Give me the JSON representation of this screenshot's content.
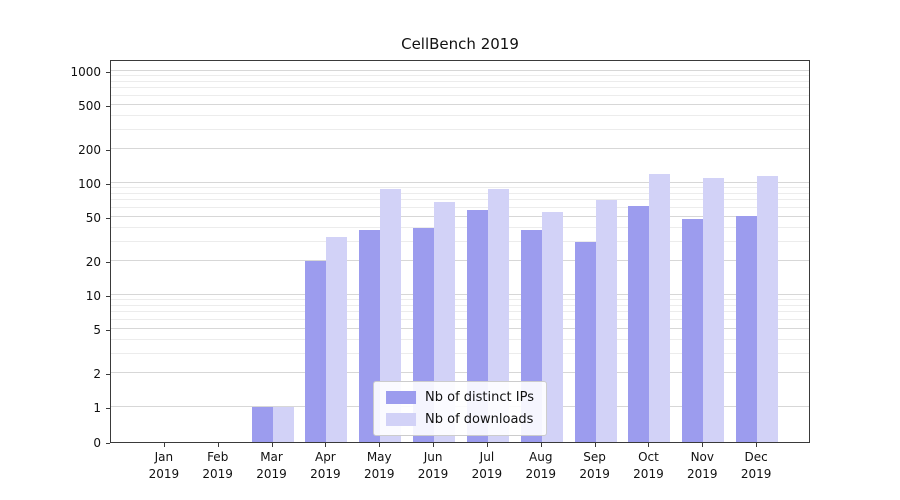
{
  "chart_data": {
    "type": "bar",
    "title": "CellBench 2019",
    "categories": [
      "Jan 2019",
      "Feb 2019",
      "Mar 2019",
      "Apr 2019",
      "May 2019",
      "Jun 2019",
      "Jul 2019",
      "Aug 2019",
      "Sep 2019",
      "Oct 2019",
      "Nov 2019",
      "Dec 2019"
    ],
    "series": [
      {
        "name": "Nb of distinct IPs",
        "color": "#9c9cee",
        "values": [
          0,
          0,
          1,
          20,
          38,
          40,
          58,
          38,
          30,
          62,
          48,
          51
        ]
      },
      {
        "name": "Nb of downloads",
        "color": "#d2d2f7",
        "values": [
          0,
          0,
          1,
          33,
          88,
          68,
          88,
          55,
          70,
          120,
          110,
          115
        ]
      }
    ],
    "yscale": "symlog",
    "yticks": [
      0,
      1,
      2,
      5,
      10,
      20,
      50,
      100,
      200,
      500,
      1000
    ],
    "ylim": [
      0,
      1200
    ],
    "xlabel": "",
    "ylabel": "",
    "grid": true,
    "legend": {
      "position": "lower center",
      "labels": [
        "Nb of distinct IPs",
        "Nb of downloads"
      ]
    }
  }
}
